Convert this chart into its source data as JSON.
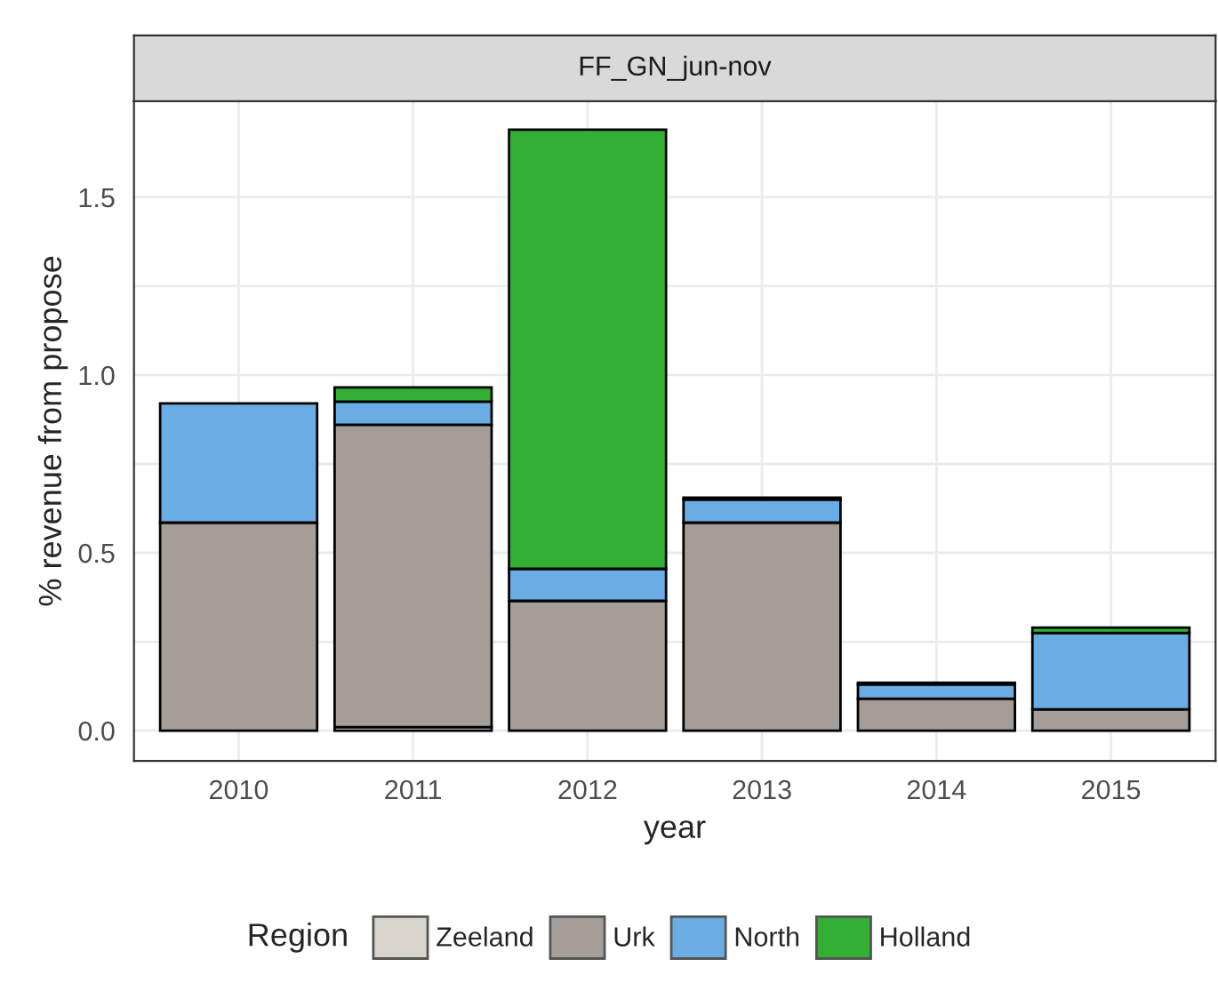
{
  "chart_data": {
    "type": "bar",
    "title": "FF_GN_jun-nov",
    "xlabel": "year",
    "ylabel": "% revenue from propose",
    "legend_title": "Region",
    "categories": [
      "2010",
      "2011",
      "2012",
      "2013",
      "2014",
      "2015"
    ],
    "stacked": true,
    "series": [
      {
        "name": "Zeeland",
        "color": "#d9d5cc",
        "values": [
          null,
          0.01,
          null,
          null,
          null,
          null
        ]
      },
      {
        "name": "Urk",
        "color": "#a59d97",
        "values": [
          0.585,
          0.85,
          0.365,
          0.585,
          0.09,
          0.06
        ]
      },
      {
        "name": "North",
        "color": "#6aade4",
        "values": [
          0.335,
          0.065,
          0.09,
          0.065,
          0.04,
          0.215
        ]
      },
      {
        "name": "Holland",
        "color": "#33b033",
        "values": [
          null,
          0.04,
          1.235,
          0.005,
          0.005,
          0.015
        ]
      }
    ],
    "ylim": [
      -0.085,
      1.77
    ],
    "yticks": [
      {
        "value": 0,
        "label": "0.0"
      },
      {
        "value": 0.25,
        "label": null
      },
      0.5,
      {
        "value": 0.75,
        "label": null
      },
      {
        "value": 1,
        "label": "1.0"
      },
      {
        "value": 1.25,
        "label": null
      },
      1.5
    ],
    "grid": true,
    "legend": "bottom"
  }
}
